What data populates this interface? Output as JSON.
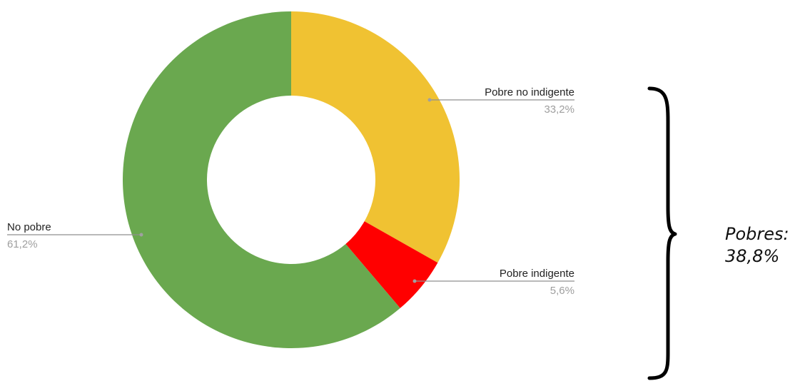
{
  "chart_data": {
    "type": "pie",
    "donut": true,
    "title": "",
    "slices": [
      {
        "label": "Pobre no indigente",
        "value": 33.2,
        "value_label": "33,2%",
        "color": "#f0c232"
      },
      {
        "label": "Pobre indigente",
        "value": 5.6,
        "value_label": "5,6%",
        "color": "#ff0000"
      },
      {
        "label": "No pobre",
        "value": 61.2,
        "value_label": "61,2%",
        "color": "#6aa84f"
      }
    ],
    "legend": "none (slice labels with leader lines)"
  },
  "annotation": {
    "line1": "Pobres:",
    "line2": "38,8%",
    "brace_color": "#000000"
  }
}
